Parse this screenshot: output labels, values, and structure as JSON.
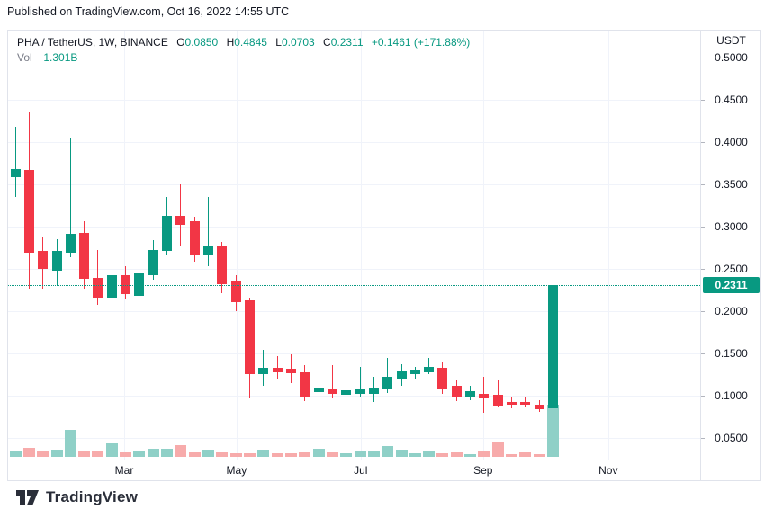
{
  "publish_bar": {
    "text": "Published on TradingView.com, Oct 16, 2022 14:55 UTC"
  },
  "legend": {
    "symbol": "PHA / TetherUS, 1W, BINANCE",
    "o_label": "O",
    "o_value": "0.0850",
    "h_label": "H",
    "h_value": "0.4845",
    "l_label": "L",
    "l_value": "0.0703",
    "c_label": "C",
    "c_value": "0.2311",
    "change": "+0.1461 (+171.88%)",
    "vol_label": "Vol",
    "vol_value": "1.301B"
  },
  "price_axis": {
    "unit": "USDT",
    "ticks": [
      "0.5000",
      "0.4500",
      "0.4000",
      "0.3500",
      "0.3000",
      "0.2500",
      "0.2000",
      "0.1500",
      "0.1000",
      "0.0500"
    ],
    "current_price_label": "0.2311"
  },
  "time_axis": {
    "labels": [
      "Mar",
      "May",
      "Jul",
      "Sep",
      "Nov"
    ]
  },
  "footer": {
    "brand": "TradingView"
  },
  "colors": {
    "up": "#089981",
    "down": "#f23645",
    "up_volume": "#8fd0c7",
    "down_volume": "#f7abab",
    "badge_bg": "#089981",
    "grid": "#f0f3fa",
    "border": "#e0e3eb",
    "text_dark": "#131722",
    "text_gray": "#787b86"
  },
  "chart_data": {
    "type": "candlestick",
    "title": "PHA / TetherUS, 1W, BINANCE",
    "ylabel": "USDT",
    "ylim": [
      0.025,
      0.53
    ],
    "y_ticks": [
      0.5,
      0.45,
      0.4,
      0.35,
      0.3,
      0.25,
      0.2,
      0.15,
      0.1,
      0.05
    ],
    "grid": true,
    "current_price": 0.2311,
    "volume_max_label": "1.301B",
    "month_marks": [
      {
        "label": "Mar",
        "index": 7.9
      },
      {
        "label": "May",
        "index": 16.05
      },
      {
        "label": "Jul",
        "index": 25.05
      },
      {
        "label": "Sep",
        "index": 33.93
      },
      {
        "label": "Nov",
        "index": 43.0
      }
    ],
    "candles": [
      {
        "o": 0.3585,
        "h": 0.418,
        "l": 0.335,
        "c": 0.368,
        "v": 0.12
      },
      {
        "o": 0.367,
        "h": 0.436,
        "l": 0.2266,
        "c": 0.269,
        "v": 0.17
      },
      {
        "o": 0.2713,
        "h": 0.287,
        "l": 0.2266,
        "c": 0.25,
        "v": 0.12
      },
      {
        "o": 0.248,
        "h": 0.285,
        "l": 0.23,
        "c": 0.2713,
        "v": 0.14
      },
      {
        "o": 0.269,
        "h": 0.404,
        "l": 0.264,
        "c": 0.2915,
        "v": 0.52
      },
      {
        "o": 0.2926,
        "h": 0.306,
        "l": 0.2266,
        "c": 0.238,
        "v": 0.1
      },
      {
        "o": 0.2394,
        "h": 0.2723,
        "l": 0.2075,
        "c": 0.216,
        "v": 0.12
      },
      {
        "o": 0.216,
        "h": 0.33,
        "l": 0.2128,
        "c": 0.2426,
        "v": 0.26
      },
      {
        "o": 0.2426,
        "h": 0.253,
        "l": 0.2138,
        "c": 0.22,
        "v": 0.09
      },
      {
        "o": 0.218,
        "h": 0.2553,
        "l": 0.2106,
        "c": 0.2447,
        "v": 0.12
      },
      {
        "o": 0.2426,
        "h": 0.284,
        "l": 0.2372,
        "c": 0.2723,
        "v": 0.16
      },
      {
        "o": 0.2713,
        "h": 0.335,
        "l": 0.266,
        "c": 0.3128,
        "v": 0.16
      },
      {
        "o": 0.3128,
        "h": 0.35,
        "l": 0.2777,
        "c": 0.302,
        "v": 0.22
      },
      {
        "o": 0.306,
        "h": 0.3117,
        "l": 0.2585,
        "c": 0.266,
        "v": 0.09
      },
      {
        "o": 0.266,
        "h": 0.335,
        "l": 0.253,
        "c": 0.2777,
        "v": 0.14
      },
      {
        "o": 0.2777,
        "h": 0.282,
        "l": 0.2213,
        "c": 0.232,
        "v": 0.09
      },
      {
        "o": 0.2351,
        "h": 0.2426,
        "l": 0.2,
        "c": 0.2106,
        "v": 0.07
      },
      {
        "o": 0.2128,
        "h": 0.216,
        "l": 0.0968,
        "c": 0.1255,
        "v": 0.07
      },
      {
        "o": 0.1255,
        "h": 0.154,
        "l": 0.1117,
        "c": 0.133,
        "v": 0.14
      },
      {
        "o": 0.133,
        "h": 0.1468,
        "l": 0.1202,
        "c": 0.1277,
        "v": 0.07
      },
      {
        "o": 0.132,
        "h": 0.149,
        "l": 0.1149,
        "c": 0.1266,
        "v": 0.07
      },
      {
        "o": 0.1277,
        "h": 0.136,
        "l": 0.0936,
        "c": 0.098,
        "v": 0.09
      },
      {
        "o": 0.1043,
        "h": 0.118,
        "l": 0.0936,
        "c": 0.1096,
        "v": 0.16
      },
      {
        "o": 0.1074,
        "h": 0.136,
        "l": 0.0968,
        "c": 0.1021,
        "v": 0.09
      },
      {
        "o": 0.1011,
        "h": 0.1117,
        "l": 0.0957,
        "c": 0.1064,
        "v": 0.07
      },
      {
        "o": 0.1021,
        "h": 0.134,
        "l": 0.0979,
        "c": 0.1074,
        "v": 0.1
      },
      {
        "o": 0.1021,
        "h": 0.122,
        "l": 0.0925,
        "c": 0.1096,
        "v": 0.1
      },
      {
        "o": 0.1074,
        "h": 0.145,
        "l": 0.1032,
        "c": 0.1223,
        "v": 0.21
      },
      {
        "o": 0.12,
        "h": 0.137,
        "l": 0.112,
        "c": 0.129,
        "v": 0.14
      },
      {
        "o": 0.1255,
        "h": 0.134,
        "l": 0.12,
        "c": 0.1309,
        "v": 0.07
      },
      {
        "o": 0.128,
        "h": 0.145,
        "l": 0.126,
        "c": 0.134,
        "v": 0.1
      },
      {
        "o": 0.133,
        "h": 0.1394,
        "l": 0.1021,
        "c": 0.1074,
        "v": 0.07
      },
      {
        "o": 0.1117,
        "h": 0.118,
        "l": 0.0936,
        "c": 0.099,
        "v": 0.09
      },
      {
        "o": 0.099,
        "h": 0.1117,
        "l": 0.0947,
        "c": 0.1053,
        "v": 0.05
      },
      {
        "o": 0.1021,
        "h": 0.122,
        "l": 0.08,
        "c": 0.0968,
        "v": 0.1
      },
      {
        "o": 0.101,
        "h": 0.118,
        "l": 0.0862,
        "c": 0.0883,
        "v": 0.28
      },
      {
        "o": 0.0926,
        "h": 0.099,
        "l": 0.0851,
        "c": 0.0894,
        "v": 0.05
      },
      {
        "o": 0.0926,
        "h": 0.0979,
        "l": 0.0862,
        "c": 0.0894,
        "v": 0.09
      },
      {
        "o": 0.0894,
        "h": 0.0947,
        "l": 0.0809,
        "c": 0.0841,
        "v": 0.05
      },
      {
        "o": 0.085,
        "h": 0.4845,
        "l": 0.0703,
        "c": 0.2311,
        "v": 1.0
      }
    ]
  }
}
